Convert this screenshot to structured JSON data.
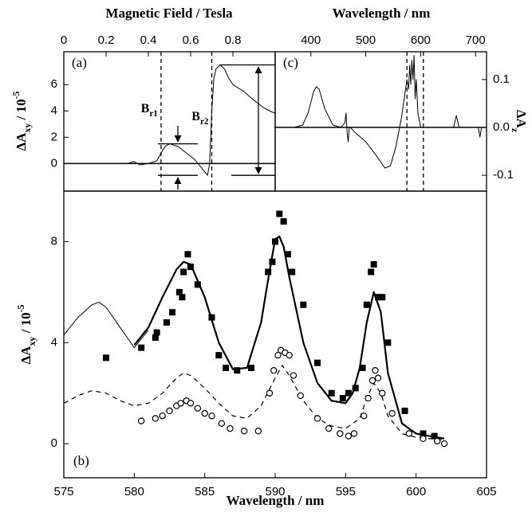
{
  "chart_data": [
    {
      "type": "line",
      "panel_label": "(a)",
      "xlabel": "Magnetic Field / Tesla",
      "ylabel": {
        "main": "ΔA",
        "sub": "xy",
        "rest": " / 10",
        "sup": "-5"
      },
      "xlim": [
        0,
        1.0
      ],
      "xticks": [
        0,
        0.2,
        0.4,
        0.6,
        0.8
      ],
      "ylim": [
        -2.1,
        8.5
      ],
      "yticks": [
        0,
        2,
        4,
        6
      ],
      "xaxis_side": "top",
      "yaxis_side": "left",
      "zero_line": true,
      "vlines": [
        0.46,
        0.7
      ],
      "vline_labels": [
        {
          "main": "B",
          "sub": "r1"
        },
        {
          "main": "B",
          "sub": "r2"
        }
      ],
      "series": [
        {
          "color": "#000",
          "width": 1,
          "x": [
            0.25,
            0.3,
            0.33,
            0.36,
            0.4,
            0.44,
            0.46,
            0.48,
            0.5,
            0.54,
            0.58,
            0.62,
            0.65,
            0.68,
            0.69,
            0.7,
            0.71,
            0.72,
            0.74,
            0.76,
            0.78,
            0.8,
            0.85,
            0.9,
            0.95,
            1.0
          ],
          "values": [
            0,
            0,
            0.15,
            -0.1,
            0,
            0.2,
            0.8,
            1.3,
            1.5,
            1.3,
            0.8,
            0.3,
            -0.3,
            -0.9,
            0,
            4,
            6.5,
            7.2,
            7.5,
            7.2,
            6.5,
            6.0,
            5.5,
            4.8,
            4.2,
            3.8
          ]
        }
      ]
    },
    {
      "type": "line",
      "panel_label": "(c)",
      "xlabel": "Wavelength / nm",
      "ylabel": {
        "main": "ΔA",
        "sub": "z"
      },
      "xlim": [
        335,
        720
      ],
      "xticks": [
        400,
        500,
        600,
        700
      ],
      "ylim": [
        -0.133,
        0.158
      ],
      "yticks": [
        -0.1,
        {
          "value": 0,
          "label": "0.0"
        },
        0.1
      ],
      "xaxis_side": "top",
      "yaxis_side": "right",
      "zero_line": true,
      "vlines": [
        575,
        605
      ],
      "series": [
        {
          "color": "#000",
          "width": 1,
          "x": [
            335,
            370,
            385,
            395,
            405,
            410,
            415,
            425,
            440,
            455,
            462,
            464,
            466,
            468,
            470,
            472,
            480,
            500,
            520,
            535,
            545,
            555,
            565,
            570,
            575,
            578,
            580,
            582,
            584,
            586,
            588,
            590,
            592,
            595,
            600,
            610,
            650,
            660,
            665,
            670,
            690,
            705,
            708,
            711,
            720
          ],
          "values": [
            0,
            0,
            0.005,
            0.03,
            0.075,
            0.085,
            0.08,
            0.04,
            0.005,
            0,
            0.01,
            0.03,
            -0.01,
            -0.03,
            0,
            0,
            -0.01,
            -0.03,
            -0.06,
            -0.085,
            -0.08,
            -0.04,
            0.02,
            0.06,
            0.1,
            0.08,
            0.13,
            0.09,
            0.14,
            0.1,
            0.15,
            0.06,
            0.1,
            0.03,
            0,
            0,
            0,
            0,
            0.025,
            0,
            0,
            0,
            -0.02,
            0,
            0
          ]
        }
      ]
    },
    {
      "type": "line",
      "panel_label": "(b)",
      "xlabel": "Wavelength / nm",
      "ylabel": {
        "main": "ΔA",
        "sub": "xy",
        "rest": " / 10",
        "sup": "-5"
      },
      "xlim": [
        575,
        605
      ],
      "xticks": [
        575,
        580,
        585,
        590,
        595,
        600,
        605
      ],
      "ylim": [
        -1.35,
        10
      ],
      "yticks": [
        0,
        4,
        8
      ],
      "xaxis_side": "bottom",
      "yaxis_side": "left",
      "series": [
        {
          "color": "#000",
          "width": 1,
          "x": [
            575,
            576,
            577,
            577.5,
            578,
            579,
            580,
            581
          ],
          "values": [
            4.3,
            5.0,
            5.5,
            5.6,
            5.4,
            4.6,
            3.8,
            4.5
          ]
        },
        {
          "color": "#000",
          "width": 2.2,
          "x": [
            580,
            581,
            582,
            583,
            583.5,
            584,
            585,
            586,
            587,
            588,
            589,
            589.5,
            590,
            590.3,
            590.6,
            591,
            592,
            593,
            594,
            595,
            595.5,
            596,
            596.5,
            597,
            597.5,
            598,
            599,
            600,
            601,
            602
          ],
          "values": [
            3.9,
            4.6,
            5.8,
            6.9,
            7.2,
            7.1,
            5.8,
            4.0,
            2.95,
            3.0,
            4.8,
            6.5,
            8.1,
            8.2,
            7.8,
            6.6,
            4.0,
            2.4,
            1.7,
            1.6,
            2.0,
            3.0,
            4.8,
            6.0,
            5.2,
            2.8,
            0.8,
            0.4,
            0.3,
            0.2
          ]
        },
        {
          "color": "#000",
          "width": 1.2,
          "dash": true,
          "x": [
            575,
            576,
            577,
            578,
            579,
            580,
            581,
            582,
            583,
            583.5,
            584,
            585,
            586,
            587,
            588,
            589,
            590,
            590.5,
            591,
            592,
            593,
            594,
            595,
            596,
            596.5,
            597,
            597.5,
            598,
            599,
            600,
            601,
            602
          ],
          "values": [
            1.6,
            1.9,
            2.1,
            2.0,
            1.7,
            1.5,
            1.6,
            2.0,
            2.6,
            2.8,
            2.7,
            2.2,
            1.6,
            1.1,
            1.0,
            1.5,
            2.6,
            3.1,
            2.7,
            1.7,
            1.0,
            0.7,
            0.6,
            1.0,
            1.8,
            2.4,
            2.0,
            1.1,
            0.4,
            0.25,
            0.2,
            0.15
          ]
        },
        {
          "color": "#000",
          "mode": "markers",
          "marker": "square",
          "x": [
            578,
            580.5,
            581.5,
            581.6,
            582.3,
            582.7,
            583.2,
            583.4,
            583.5,
            583.8,
            584.0,
            584.5,
            585.5,
            586.0,
            586.5,
            587.3,
            588.3,
            589.5,
            589.8,
            590.0,
            590.3,
            590.6,
            590.9,
            591.2,
            592.0,
            593.0,
            594.0,
            594.8,
            595.2,
            595.7,
            596.2,
            596.5,
            596.8,
            597.0,
            597.3,
            597.6,
            598.0,
            599.2,
            600.5,
            601.3
          ],
          "values": [
            3.4,
            3.8,
            4.2,
            4.4,
            4.8,
            5.2,
            6.0,
            5.8,
            6.8,
            7.5,
            7.0,
            6.3,
            5.0,
            3.5,
            3.0,
            2.9,
            3.0,
            6.8,
            7.2,
            8.0,
            9.1,
            8.8,
            7.5,
            6.8,
            5.5,
            3.2,
            2.0,
            1.8,
            2.0,
            2.2,
            3.0,
            5.5,
            6.8,
            7.1,
            5.8,
            5.8,
            4.0,
            1.3,
            0.4,
            0.3
          ]
        },
        {
          "color": "#000",
          "mode": "markers",
          "marker": "circle",
          "x": [
            580.5,
            581.5,
            582.0,
            582.5,
            583.0,
            583.3,
            583.7,
            584.0,
            584.5,
            585.0,
            585.5,
            586.2,
            586.8,
            587.8,
            588.8,
            589.6,
            589.9,
            590.2,
            590.4,
            590.7,
            591.0,
            591.3,
            591.8,
            593.0,
            593.8,
            594.6,
            595.2,
            595.6,
            596.3,
            596.6,
            596.9,
            597.1,
            597.3,
            597.6,
            598.3,
            599.5,
            600.5,
            601.5,
            602.0
          ],
          "values": [
            0.9,
            1.0,
            1.1,
            1.3,
            1.5,
            1.6,
            1.7,
            1.6,
            1.4,
            1.2,
            1.1,
            0.8,
            0.6,
            0.5,
            0.5,
            2.0,
            2.9,
            3.5,
            3.7,
            3.6,
            3.5,
            2.7,
            1.9,
            1.0,
            0.6,
            0.4,
            0.3,
            0.4,
            1.1,
            1.8,
            2.5,
            2.9,
            2.6,
            2.0,
            1.2,
            0.4,
            0.2,
            0.1,
            0.0
          ]
        }
      ]
    }
  ]
}
